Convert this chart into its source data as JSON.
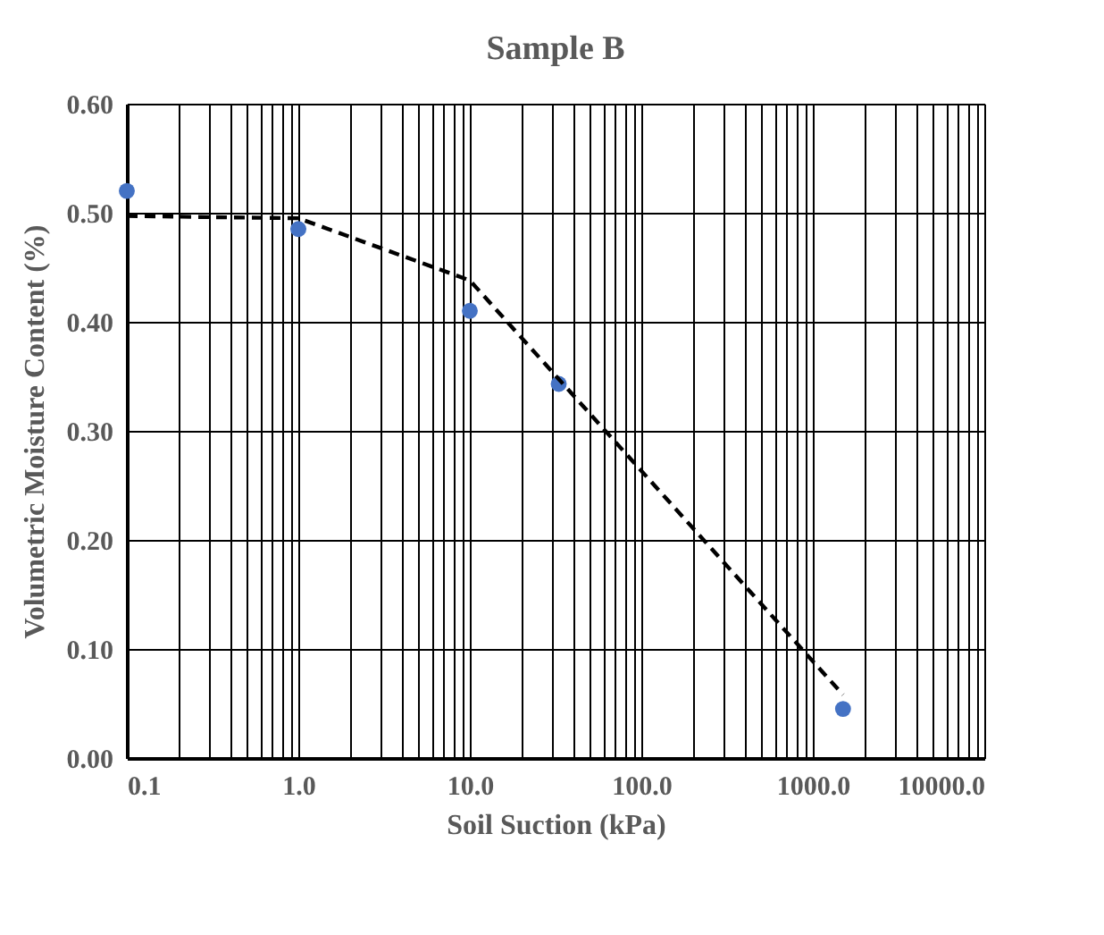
{
  "chart_data": {
    "type": "scatter",
    "title": "Sample B",
    "xlabel": "Soil Suction (kPa)",
    "ylabel": "Volumetric Moisture Content (%)",
    "log": "x",
    "grid": true,
    "legend": false,
    "xlim": [
      0.1,
      10000
    ],
    "ylim": [
      0,
      0.6
    ],
    "xticks": [
      {
        "value": 0.1,
        "label": "0.1"
      },
      {
        "value": 0.2,
        "label": null
      },
      {
        "value": 0.3,
        "label": null
      },
      {
        "value": 0.4,
        "label": null
      },
      {
        "value": 0.5,
        "label": null
      },
      {
        "value": 0.6,
        "label": null
      },
      {
        "value": 0.7,
        "label": null
      },
      {
        "value": 0.8,
        "label": null
      },
      {
        "value": 0.9,
        "label": null
      },
      {
        "value": 1,
        "label": "1.0"
      },
      {
        "value": 2,
        "label": null
      },
      {
        "value": 3,
        "label": null
      },
      {
        "value": 4,
        "label": null
      },
      {
        "value": 5,
        "label": null
      },
      {
        "value": 6,
        "label": null
      },
      {
        "value": 7,
        "label": null
      },
      {
        "value": 8,
        "label": null
      },
      {
        "value": 9,
        "label": null
      },
      {
        "value": 10,
        "label": "10.0"
      },
      {
        "value": 20,
        "label": null
      },
      {
        "value": 30,
        "label": null
      },
      {
        "value": 40,
        "label": null
      },
      {
        "value": 50,
        "label": null
      },
      {
        "value": 60,
        "label": null
      },
      {
        "value": 70,
        "label": null
      },
      {
        "value": 80,
        "label": null
      },
      {
        "value": 90,
        "label": null
      },
      {
        "value": 100,
        "label": "100.0"
      },
      {
        "value": 200,
        "label": null
      },
      {
        "value": 300,
        "label": null
      },
      {
        "value": 400,
        "label": null
      },
      {
        "value": 500,
        "label": null
      },
      {
        "value": 600,
        "label": null
      },
      {
        "value": 700,
        "label": null
      },
      {
        "value": 800,
        "label": null
      },
      {
        "value": 900,
        "label": null
      },
      {
        "value": 1000,
        "label": "1000.0"
      },
      {
        "value": 2000,
        "label": null
      },
      {
        "value": 3000,
        "label": null
      },
      {
        "value": 4000,
        "label": null
      },
      {
        "value": 5000,
        "label": null
      },
      {
        "value": 6000,
        "label": null
      },
      {
        "value": 7000,
        "label": null
      },
      {
        "value": 8000,
        "label": null
      },
      {
        "value": 9000,
        "label": null
      },
      {
        "value": 10000,
        "label": "10000.0"
      }
    ],
    "yticks": [
      {
        "value": 0,
        "label": "0.00"
      },
      {
        "value": 0.1,
        "label": "0.10"
      },
      {
        "value": 0.2,
        "label": "0.20"
      },
      {
        "value": 0.3,
        "label": "0.30"
      },
      {
        "value": 0.4,
        "label": "0.40"
      },
      {
        "value": 0.5,
        "label": "0.50"
      },
      {
        "value": 0.6,
        "label": "0.60"
      }
    ],
    "series": [
      {
        "type": "scatter",
        "color": "#4472c4",
        "marker": "circle",
        "x": [
          0.1,
          1,
          10,
          33,
          1500
        ],
        "values": [
          0.52,
          0.485,
          0.41,
          0.343,
          0.045
        ]
      },
      {
        "type": "line",
        "color": "#000000",
        "line_style": "dashed",
        "marker": "none",
        "x": [
          0.1,
          1,
          10,
          1500
        ],
        "values": [
          0.497,
          0.495,
          0.438,
          0.058
        ]
      }
    ]
  }
}
